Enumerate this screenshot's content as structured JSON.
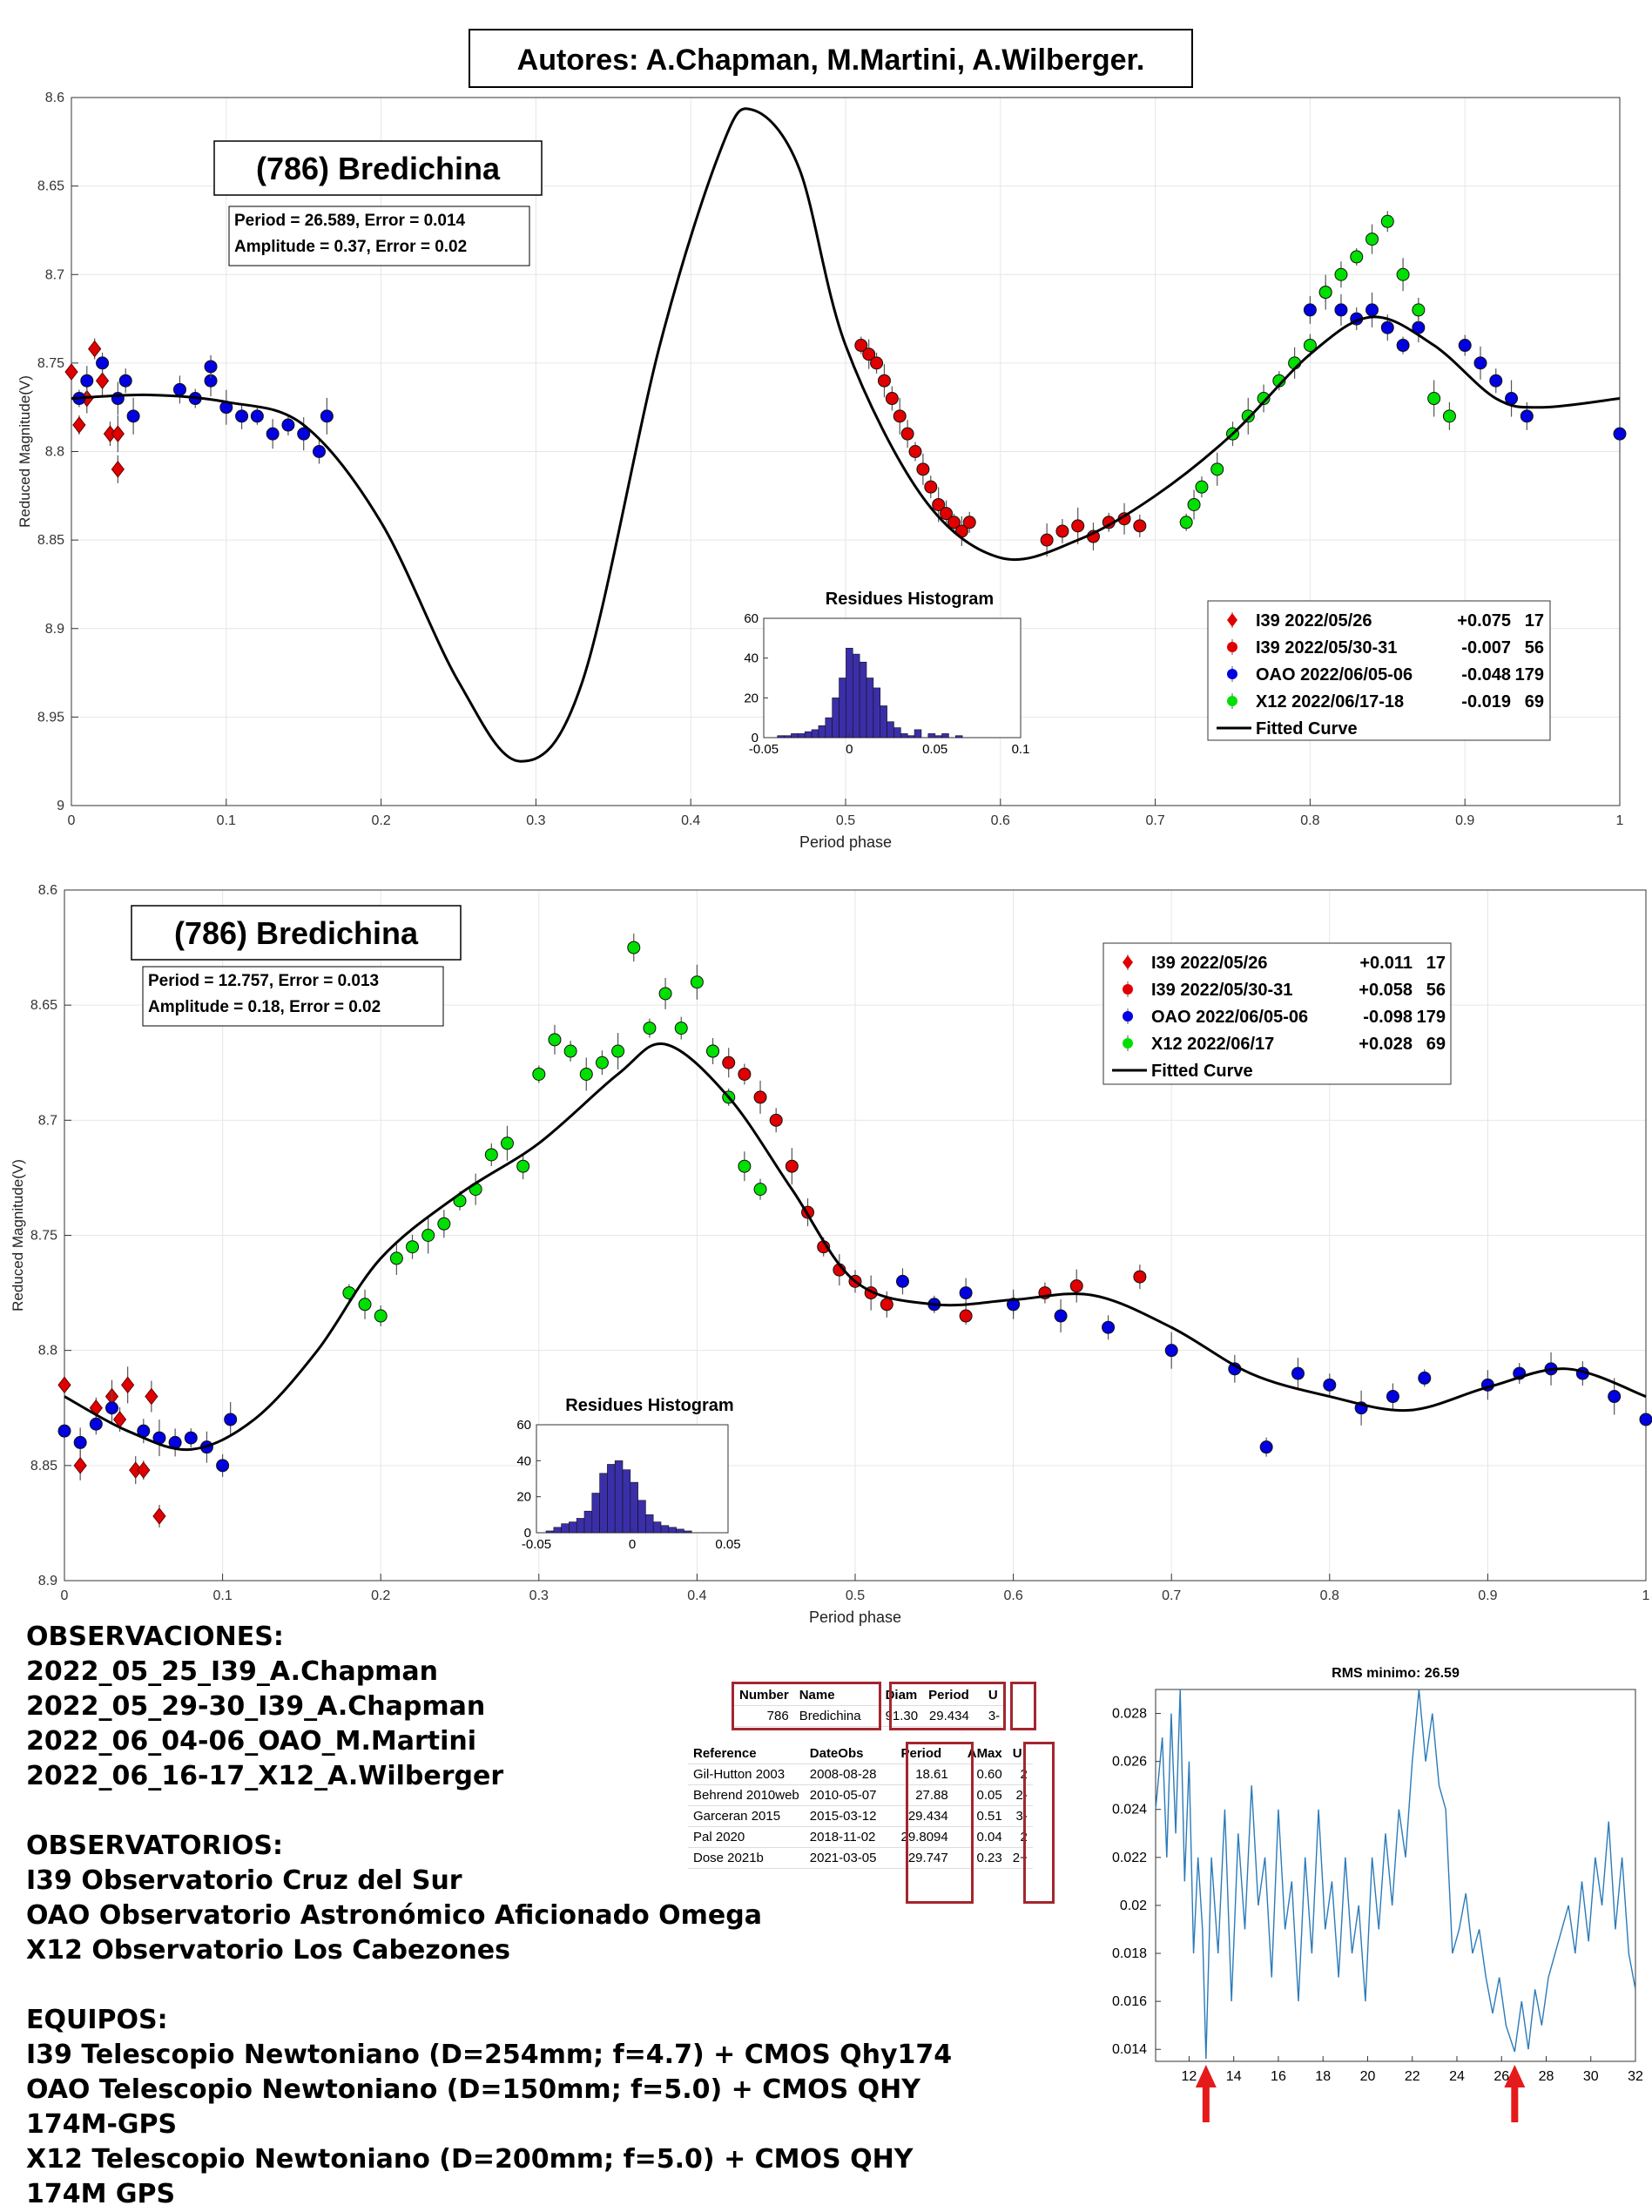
{
  "header": {
    "authors": "Autores: A.Chapman, M.Martini, A.Wilberger."
  },
  "chart_data": [
    {
      "type": "scatter",
      "title": "(786) Bredichina",
      "fit_box": {
        "line1": "Period =  26.589, Error = 0.014",
        "line2": "Amplitude = 0.37, Error = 0.02"
      },
      "xlabel": "Period phase",
      "ylabel": "Reduced Magnitude(V)",
      "xlim": [
        0,
        1
      ],
      "ylim": [
        8.6,
        9.0
      ],
      "y_reversed": true,
      "xticks": [
        "0",
        "0.1",
        "0.2",
        "0.3",
        "0.4",
        "0.5",
        "0.6",
        "0.7",
        "0.8",
        "0.9",
        "1"
      ],
      "yticks": [
        "8.6",
        "8.65",
        "8.7",
        "8.75",
        "8.8",
        "8.85",
        "8.9",
        "8.95",
        "9"
      ],
      "legend": [
        {
          "label": "I39 2022/05/26",
          "offset": "+0.075",
          "n": "17",
          "color": "#e00000",
          "marker": "diamond"
        },
        {
          "label": "I39 2022/05/30-31",
          "offset": "-0.007",
          "n": "56",
          "color": "#e00000",
          "marker": "circle"
        },
        {
          "label": "OAO 2022/06/05-06",
          "offset": "-0.048",
          "n": "179",
          "color": "#0000e0",
          "marker": "circle"
        },
        {
          "label": "X12 2022/06/17-18",
          "offset": "-0.019",
          "n": "69",
          "color": "#00e000",
          "marker": "circle"
        },
        {
          "label": "Fitted Curve",
          "offset": "",
          "n": "",
          "color": "#000000",
          "marker": "line"
        }
      ],
      "curve": {
        "x": [
          0,
          0.05,
          0.1,
          0.15,
          0.2,
          0.25,
          0.29,
          0.33,
          0.38,
          0.42,
          0.44,
          0.47,
          0.5,
          0.55,
          0.6,
          0.65,
          0.7,
          0.75,
          0.8,
          0.84,
          0.88,
          0.92,
          0.95,
          1.0
        ],
        "y": [
          8.77,
          8.768,
          8.772,
          8.785,
          8.84,
          8.93,
          8.975,
          8.93,
          8.74,
          8.628,
          8.607,
          8.64,
          8.74,
          8.826,
          8.86,
          8.85,
          8.825,
          8.79,
          8.745,
          8.724,
          8.74,
          8.77,
          8.775,
          8.77
        ]
      },
      "series": [
        {
          "name": "I39 2022/05/26",
          "marker": "diamond",
          "color": "#e00000",
          "x": [
            0.0,
            0.01,
            0.015,
            0.02,
            0.025,
            0.03,
            0.03,
            0.005
          ],
          "y": [
            8.755,
            8.77,
            8.742,
            8.76,
            8.79,
            8.79,
            8.81,
            8.785
          ]
        },
        {
          "name": "I39 2022/05/30-31",
          "marker": "circle",
          "color": "#e00000",
          "x": [
            0.51,
            0.515,
            0.52,
            0.525,
            0.53,
            0.535,
            0.54,
            0.545,
            0.55,
            0.555,
            0.56,
            0.565,
            0.57,
            0.575,
            0.58,
            0.63,
            0.64,
            0.65,
            0.66,
            0.67,
            0.68,
            0.69
          ],
          "y": [
            8.74,
            8.745,
            8.75,
            8.76,
            8.77,
            8.78,
            8.79,
            8.8,
            8.81,
            8.82,
            8.83,
            8.835,
            8.84,
            8.845,
            8.84,
            8.85,
            8.845,
            8.842,
            8.848,
            8.84,
            8.838,
            8.842
          ]
        },
        {
          "name": "OAO 2022/06/05-06",
          "marker": "circle",
          "color": "#0000e0",
          "x": [
            0.005,
            0.01,
            0.02,
            0.03,
            0.035,
            0.04,
            0.07,
            0.08,
            0.09,
            0.09,
            0.1,
            0.11,
            0.12,
            0.13,
            0.14,
            0.15,
            0.16,
            0.165,
            0.8,
            0.81,
            0.82,
            0.83,
            0.84,
            0.85,
            0.86,
            0.87,
            0.9,
            0.91,
            0.92,
            0.93,
            0.94,
            1.0
          ],
          "y": [
            8.77,
            8.76,
            8.75,
            8.77,
            8.76,
            8.78,
            8.765,
            8.77,
            8.76,
            8.752,
            8.775,
            8.78,
            8.78,
            8.79,
            8.785,
            8.79,
            8.8,
            8.78,
            8.72,
            8.71,
            8.72,
            8.725,
            8.72,
            8.73,
            8.74,
            8.73,
            8.74,
            8.75,
            8.76,
            8.77,
            8.78,
            8.79
          ]
        },
        {
          "name": "X12 2022/06/17-18",
          "marker": "circle",
          "color": "#00e000",
          "x": [
            0.72,
            0.725,
            0.73,
            0.74,
            0.75,
            0.76,
            0.77,
            0.78,
            0.79,
            0.8,
            0.81,
            0.82,
            0.83,
            0.84,
            0.85,
            0.86,
            0.87,
            0.88,
            0.89
          ],
          "y": [
            8.84,
            8.83,
            8.82,
            8.81,
            8.79,
            8.78,
            8.77,
            8.76,
            8.75,
            8.74,
            8.71,
            8.7,
            8.69,
            8.68,
            8.67,
            8.7,
            8.72,
            8.77,
            8.78
          ]
        }
      ],
      "histogram": {
        "title": "Residues Histogram",
        "xticks": [
          "-0.05",
          "0",
          "0.05",
          "0.1"
        ],
        "yticks": [
          "0",
          "20",
          "40",
          "60"
        ],
        "xlim": [
          -0.05,
          0.1
        ],
        "ylim": [
          0,
          60
        ],
        "bin_start": -0.042,
        "bin_width": 0.004,
        "counts": [
          1,
          1,
          2,
          2,
          3,
          4,
          6,
          10,
          20,
          30,
          45,
          42,
          38,
          30,
          25,
          16,
          8,
          5,
          2,
          1,
          4,
          0,
          2,
          1,
          2,
          0,
          1
        ]
      }
    },
    {
      "type": "scatter",
      "title": "(786) Bredichina",
      "fit_box": {
        "line1": "Period =  12.757, Error = 0.013",
        "line2": "Amplitude = 0.18, Error = 0.02"
      },
      "xlabel": "Period phase",
      "ylabel": "Reduced Magnitude(V)",
      "xlim": [
        0,
        1
      ],
      "ylim": [
        8.6,
        8.9
      ],
      "y_reversed": true,
      "xticks": [
        "0",
        "0.1",
        "0.2",
        "0.3",
        "0.4",
        "0.5",
        "0.6",
        "0.7",
        "0.8",
        "0.9",
        "1"
      ],
      "yticks": [
        "8.6",
        "8.65",
        "8.7",
        "8.75",
        "8.8",
        "8.85",
        "8.9"
      ],
      "legend": [
        {
          "label": "I39 2022/05/26",
          "offset": "+0.011",
          "n": "17",
          "color": "#e00000",
          "marker": "diamond"
        },
        {
          "label": "I39 2022/05/30-31",
          "offset": "+0.058",
          "n": "56",
          "color": "#e00000",
          "marker": "circle"
        },
        {
          "label": "OAO 2022/06/05-06",
          "offset": "-0.098",
          "n": "179",
          "color": "#0000e0",
          "marker": "circle"
        },
        {
          "label": "X12 2022/06/17",
          "offset": "+0.028",
          "n": "69",
          "color": "#00e000",
          "marker": "circle"
        },
        {
          "label": "Fitted Curve",
          "offset": "",
          "n": "",
          "color": "#000000",
          "marker": "line"
        }
      ],
      "curve": {
        "x": [
          0,
          0.04,
          0.08,
          0.12,
          0.16,
          0.2,
          0.25,
          0.3,
          0.35,
          0.38,
          0.42,
          0.46,
          0.5,
          0.55,
          0.6,
          0.65,
          0.7,
          0.75,
          0.8,
          0.85,
          0.9,
          0.95,
          1.0
        ],
        "y": [
          8.82,
          8.835,
          8.843,
          8.83,
          8.8,
          8.76,
          8.732,
          8.71,
          8.68,
          8.667,
          8.69,
          8.73,
          8.77,
          8.78,
          8.778,
          8.776,
          8.79,
          8.81,
          8.82,
          8.826,
          8.816,
          8.808,
          8.82
        ]
      },
      "series": [
        {
          "name": "I39 2022/05/26",
          "marker": "diamond",
          "color": "#e00000",
          "x": [
            0.0,
            0.01,
            0.02,
            0.03,
            0.035,
            0.04,
            0.045,
            0.05,
            0.055,
            0.06
          ],
          "y": [
            8.815,
            8.85,
            8.825,
            8.82,
            8.83,
            8.815,
            8.852,
            8.852,
            8.82,
            8.872
          ]
        },
        {
          "name": "I39 2022/05/30-31",
          "marker": "circle",
          "color": "#e00000",
          "x": [
            0.41,
            0.42,
            0.43,
            0.44,
            0.45,
            0.46,
            0.47,
            0.48,
            0.49,
            0.5,
            0.51,
            0.52,
            0.57,
            0.6,
            0.62,
            0.64,
            0.68
          ],
          "y": [
            8.67,
            8.675,
            8.68,
            8.69,
            8.7,
            8.72,
            8.74,
            8.755,
            8.765,
            8.77,
            8.775,
            8.78,
            8.785,
            8.78,
            8.775,
            8.772,
            8.768
          ]
        },
        {
          "name": "OAO 2022/06/05-06",
          "marker": "circle",
          "color": "#0000e0",
          "x": [
            0.0,
            0.01,
            0.02,
            0.03,
            0.05,
            0.06,
            0.07,
            0.08,
            0.09,
            0.1,
            0.105,
            0.53,
            0.55,
            0.57,
            0.6,
            0.63,
            0.66,
            0.7,
            0.74,
            0.76,
            0.78,
            0.8,
            0.82,
            0.84,
            0.86,
            0.9,
            0.92,
            0.94,
            0.96,
            0.98,
            1.0
          ],
          "y": [
            8.835,
            8.84,
            8.832,
            8.825,
            8.835,
            8.838,
            8.84,
            8.838,
            8.842,
            8.85,
            8.83,
            8.77,
            8.78,
            8.775,
            8.78,
            8.785,
            8.79,
            8.8,
            8.808,
            8.842,
            8.81,
            8.815,
            8.825,
            8.82,
            8.812,
            8.815,
            8.81,
            8.808,
            8.81,
            8.82,
            8.83
          ]
        },
        {
          "name": "X12 2022/06/17",
          "marker": "circle",
          "color": "#00e000",
          "x": [
            0.18,
            0.19,
            0.2,
            0.21,
            0.22,
            0.23,
            0.24,
            0.25,
            0.26,
            0.27,
            0.28,
            0.29,
            0.3,
            0.31,
            0.32,
            0.33,
            0.34,
            0.35,
            0.36,
            0.37,
            0.38,
            0.39,
            0.4,
            0.41,
            0.42,
            0.43,
            0.44
          ],
          "y": [
            8.775,
            8.78,
            8.785,
            8.76,
            8.755,
            8.75,
            8.745,
            8.735,
            8.73,
            8.715,
            8.71,
            8.72,
            8.68,
            8.665,
            8.67,
            8.68,
            8.675,
            8.67,
            8.625,
            8.66,
            8.645,
            8.66,
            8.64,
            8.67,
            8.69,
            8.72,
            8.73
          ]
        }
      ],
      "histogram": {
        "title": "Residues Histogram",
        "xticks": [
          "-0.05",
          "0",
          "0.05"
        ],
        "yticks": [
          "0",
          "20",
          "40",
          "60"
        ],
        "xlim": [
          -0.05,
          0.05
        ],
        "ylim": [
          0,
          60
        ],
        "bin_start": -0.045,
        "bin_width": 0.004,
        "counts": [
          1,
          3,
          5,
          6,
          8,
          12,
          22,
          33,
          38,
          40,
          35,
          28,
          18,
          10,
          6,
          4,
          3,
          2,
          1
        ]
      }
    },
    {
      "type": "line",
      "title": "RMS minimo: 26.59",
      "xlabel": "",
      "ylabel": "",
      "xlim": [
        10.5,
        32
      ],
      "ylim": [
        0.0135,
        0.029
      ],
      "xticks": [
        "12",
        "14",
        "16",
        "18",
        "20",
        "22",
        "24",
        "26",
        "28",
        "30",
        "32"
      ],
      "yticks": [
        "0.014",
        "0.016",
        "0.018",
        "0.02",
        "0.022",
        "0.024",
        "0.026",
        "0.028"
      ],
      "markers_at": [
        12.757,
        26.589
      ],
      "series": [
        {
          "color": "#2b7bba",
          "x": [
            10.5,
            10.8,
            11.0,
            11.2,
            11.4,
            11.6,
            11.8,
            12.0,
            12.2,
            12.4,
            12.6,
            12.757,
            13.0,
            13.3,
            13.6,
            13.9,
            14.2,
            14.5,
            14.8,
            15.1,
            15.4,
            15.7,
            16.0,
            16.3,
            16.6,
            16.9,
            17.2,
            17.5,
            17.8,
            18.1,
            18.4,
            18.7,
            19.0,
            19.3,
            19.6,
            19.9,
            20.2,
            20.5,
            20.8,
            21.1,
            21.4,
            21.7,
            22.0,
            22.3,
            22.6,
            22.9,
            23.2,
            23.5,
            23.8,
            24.1,
            24.4,
            24.7,
            25.0,
            25.3,
            25.6,
            25.9,
            26.2,
            26.589,
            26.9,
            27.2,
            27.5,
            27.8,
            28.1,
            28.4,
            28.7,
            29.0,
            29.3,
            29.6,
            29.9,
            30.2,
            30.5,
            30.8,
            31.1,
            31.4,
            31.7,
            32.0
          ],
          "y": [
            0.024,
            0.027,
            0.022,
            0.028,
            0.023,
            0.029,
            0.021,
            0.026,
            0.018,
            0.022,
            0.019,
            0.0136,
            0.022,
            0.018,
            0.024,
            0.016,
            0.023,
            0.019,
            0.025,
            0.02,
            0.022,
            0.017,
            0.024,
            0.019,
            0.021,
            0.016,
            0.022,
            0.018,
            0.024,
            0.019,
            0.021,
            0.017,
            0.022,
            0.018,
            0.02,
            0.016,
            0.022,
            0.019,
            0.023,
            0.02,
            0.024,
            0.022,
            0.026,
            0.029,
            0.026,
            0.028,
            0.025,
            0.024,
            0.018,
            0.019,
            0.0205,
            0.018,
            0.019,
            0.017,
            0.0155,
            0.017,
            0.015,
            0.0139,
            0.016,
            0.014,
            0.0165,
            0.015,
            0.017,
            0.018,
            0.019,
            0.02,
            0.018,
            0.021,
            0.0185,
            0.022,
            0.02,
            0.0235,
            0.019,
            0.022,
            0.018,
            0.0165
          ]
        }
      ]
    }
  ],
  "notes": {
    "observaciones_title": "OBSERVACIONES:",
    "observaciones": [
      "2022_05_25_I39_A.Chapman",
      "2022_05_29-30_I39_A.Chapman",
      "2022_06_04-06_OAO_M.Martini",
      "2022_06_16-17_X12_A.Wilberger"
    ],
    "observatorios_title": "OBSERVATORIOS:",
    "observatorios": [
      "I39 Observatorio Cruz del Sur",
      "OAO Observatorio Astronómico Aficionado Omega",
      "X12 Observatorio Los Cabezones"
    ],
    "equipos_title": "EQUIPOS:",
    "equipos": [
      "I39 Telescopio Newtoniano (D=254mm; f=4.7) + CMOS Qhy174",
      "OAO Telescopio Newtoniano (D=150mm; f=5.0) + CMOS QHY 174M-GPS",
      "X12 Telescopio Newtoniano (D=200mm; f=5.0) + CMOS QHY 174M GPS"
    ]
  },
  "lcdb": {
    "top_headers": [
      "Number",
      "Name",
      "Diam",
      "Period",
      "U"
    ],
    "top_row": [
      "786",
      "Bredichina",
      "91.30",
      "29.434",
      "3-"
    ],
    "headers": [
      "Reference",
      "DateObs",
      "Period",
      "AMax",
      "U"
    ],
    "rows": [
      [
        "Gil-Hutton 2003",
        "2008-08-28",
        "18.61",
        "0.60",
        "2"
      ],
      [
        "Behrend 2010web",
        "2010-05-07",
        "27.88",
        "0.05",
        "2-"
      ],
      [
        "Garceran 2015",
        "2015-03-12",
        "29.434",
        "0.51",
        "3-"
      ],
      [
        "Pal 2020",
        "2018-11-02",
        "29.8094",
        "0.04",
        "2"
      ],
      [
        "Dose 2021b",
        "2021-03-05",
        "29.747",
        "0.23",
        "2+"
      ]
    ]
  }
}
